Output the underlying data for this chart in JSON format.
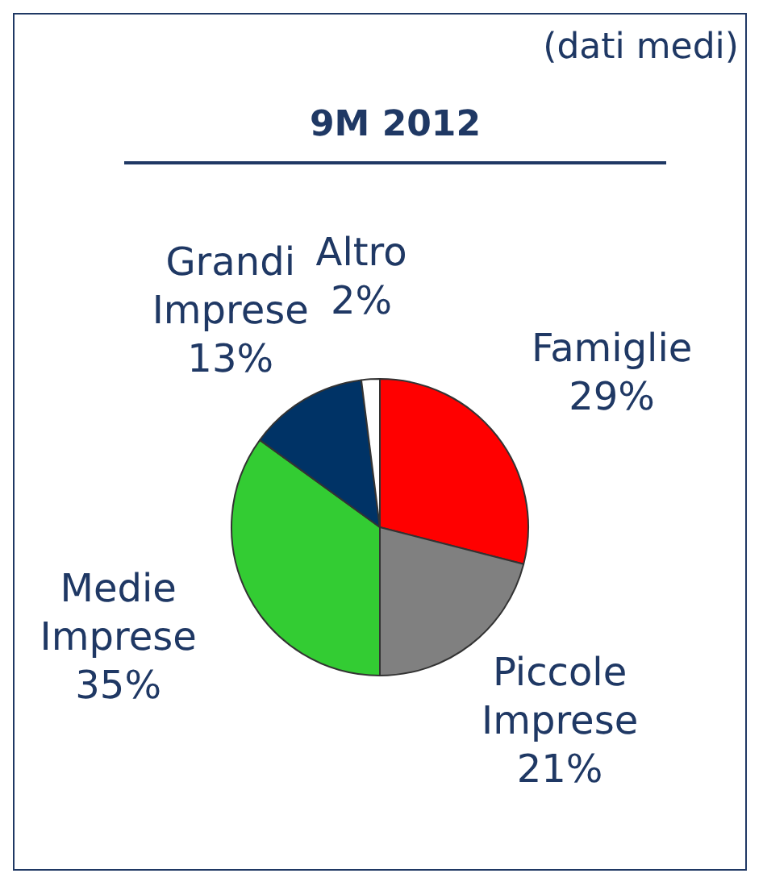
{
  "chart_data": {
    "type": "pie",
    "title": "9M 2012",
    "subtitle": "(dati medi)",
    "categories": [
      "Famiglie",
      "Piccole Imprese",
      "Medie Imprese",
      "Grandi Imprese",
      "Altro"
    ],
    "values": [
      29,
      21,
      35,
      13,
      2
    ],
    "colors": [
      "#ff0000",
      "#808080",
      "#33cc33",
      "#003366",
      "#ffffff"
    ],
    "value_labels": [
      "29%",
      "21%",
      "35%",
      "13%",
      "2%"
    ],
    "legend": false
  }
}
